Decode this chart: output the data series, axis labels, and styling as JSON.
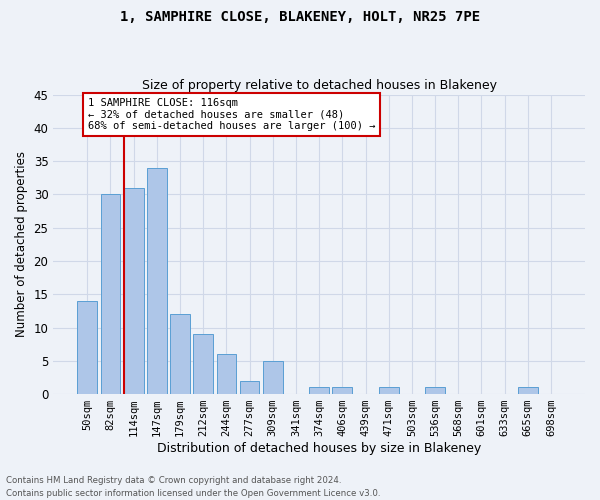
{
  "title": "1, SAMPHIRE CLOSE, BLAKENEY, HOLT, NR25 7PE",
  "subtitle": "Size of property relative to detached houses in Blakeney",
  "xlabel": "Distribution of detached houses by size in Blakeney",
  "ylabel": "Number of detached properties",
  "footer1": "Contains HM Land Registry data © Crown copyright and database right 2024.",
  "footer2": "Contains public sector information licensed under the Open Government Licence v3.0.",
  "annotation_line1": "1 SAMPHIRE CLOSE: 116sqm",
  "annotation_line2": "← 32% of detached houses are smaller (48)",
  "annotation_line3": "68% of semi-detached houses are larger (100) →",
  "bar_labels": [
    "50sqm",
    "82sqm",
    "114sqm",
    "147sqm",
    "179sqm",
    "212sqm",
    "244sqm",
    "277sqm",
    "309sqm",
    "341sqm",
    "374sqm",
    "406sqm",
    "439sqm",
    "471sqm",
    "503sqm",
    "536sqm",
    "568sqm",
    "601sqm",
    "633sqm",
    "665sqm",
    "698sqm"
  ],
  "bar_values": [
    14,
    30,
    31,
    34,
    12,
    9,
    6,
    2,
    5,
    0,
    1,
    1,
    0,
    1,
    0,
    1,
    0,
    0,
    0,
    1,
    0
  ],
  "bar_color": "#aec6e8",
  "bar_edge_color": "#5a9fd4",
  "grid_color": "#d0d8e8",
  "bg_color": "#eef2f8",
  "property_line_x": 2.0,
  "property_line_color": "#cc0000",
  "annotation_box_color": "#cc0000",
  "ylim": [
    0,
    45
  ],
  "yticks": [
    0,
    5,
    10,
    15,
    20,
    25,
    30,
    35,
    40,
    45
  ]
}
